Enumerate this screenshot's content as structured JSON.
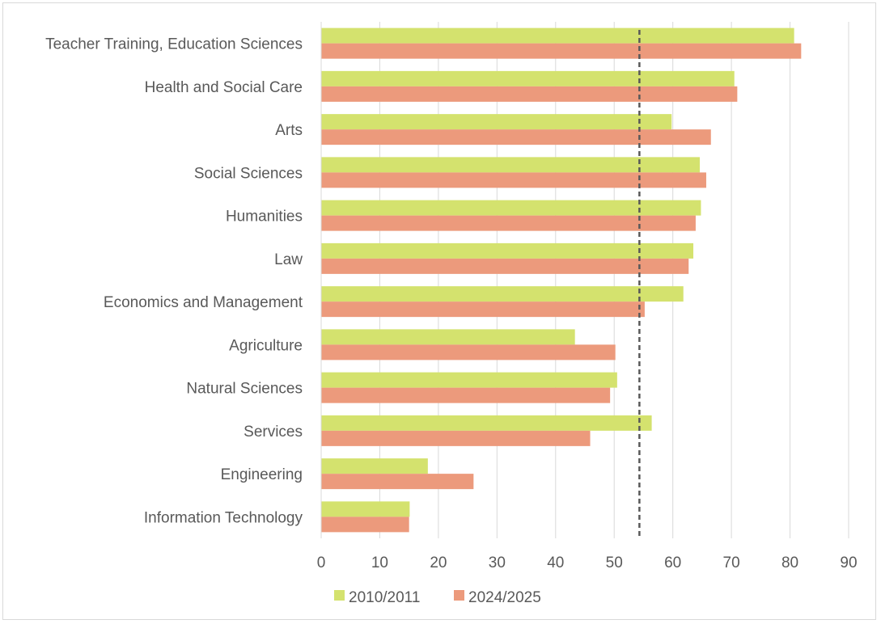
{
  "chart_data": {
    "type": "bar",
    "orientation": "horizontal",
    "categories": [
      "Teacher Training, Education Sciences",
      "Health and Social Care",
      "Arts",
      "Social Sciences",
      "Humanities",
      "Law",
      "Economics and Management",
      "Agriculture",
      "Natural Sciences",
      "Services",
      "Engineering",
      "Information Technology"
    ],
    "series": [
      {
        "name": "2010/2011",
        "color": "#d4e26e",
        "values": [
          80.7,
          70.5,
          59.8,
          64.6,
          64.8,
          63.5,
          61.8,
          43.3,
          50.5,
          56.4,
          18.2,
          15.1
        ]
      },
      {
        "name": "2024/2025",
        "color": "#ec9a7c",
        "values": [
          81.9,
          71.0,
          66.5,
          65.7,
          63.9,
          62.7,
          55.2,
          50.2,
          49.3,
          45.9,
          26.0,
          15.0
        ]
      }
    ],
    "reference_line": {
      "value": 54.3,
      "style": "dashed",
      "color": "#595959"
    },
    "xlim": [
      0,
      90
    ],
    "xticks": [
      0,
      10,
      20,
      30,
      40,
      50,
      60,
      70,
      80,
      90
    ],
    "grid": true,
    "legend_position": "bottom"
  }
}
